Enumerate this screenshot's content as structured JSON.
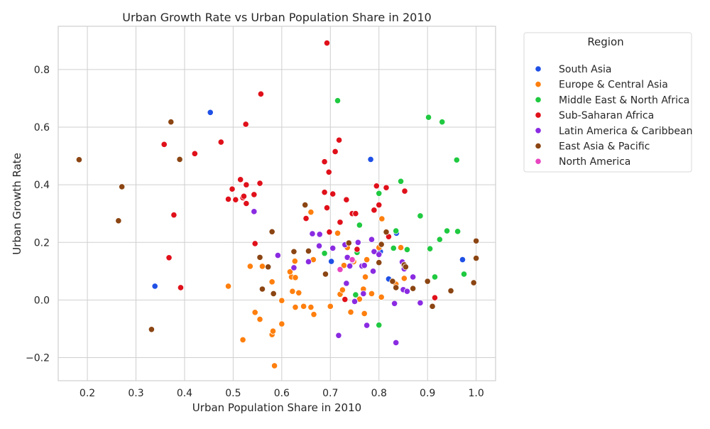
{
  "chart_data": {
    "type": "scatter",
    "title": "Urban Growth Rate vs Urban Population Share in 2010",
    "xlabel": "Urban Population Share in 2010",
    "ylabel": "Urban Growth Rate",
    "xlim": [
      0.14,
      1.04
    ],
    "ylim": [
      -0.28,
      0.95
    ],
    "xticks": [
      "0.2",
      "0.3",
      "0.4",
      "0.5",
      "0.6",
      "0.7",
      "0.8",
      "0.9",
      "1.0"
    ],
    "yticks": [
      "−0.2",
      "0.0",
      "0.2",
      "0.4",
      "0.6",
      "0.8"
    ],
    "grid": true,
    "legend": {
      "title": "Region",
      "placement": "outside-right"
    },
    "series": [
      {
        "name": "South Asia",
        "color": "#1f50e6",
        "points": [
          [
            0.453,
            0.651
          ],
          [
            0.339,
            0.048
          ],
          [
            0.783,
            0.488
          ],
          [
            0.836,
            0.232
          ],
          [
            0.803,
            0.168
          ],
          [
            0.702,
            0.134
          ],
          [
            0.82,
            0.073
          ],
          [
            0.972,
            0.14
          ]
        ]
      },
      {
        "name": "Europe & Central Asia",
        "color": "#ff7f0e",
        "points": [
          [
            0.49,
            0.048
          ],
          [
            0.535,
            0.117
          ],
          [
            0.545,
            -0.043
          ],
          [
            0.555,
            -0.067
          ],
          [
            0.52,
            -0.138
          ],
          [
            0.58,
            -0.12
          ],
          [
            0.585,
            -0.228
          ],
          [
            0.582,
            -0.108
          ],
          [
            0.6,
            -0.083
          ],
          [
            0.58,
            0.063
          ],
          [
            0.56,
            0.117
          ],
          [
            0.6,
            -0.002
          ],
          [
            0.62,
            0.08
          ],
          [
            0.617,
            0.098
          ],
          [
            0.622,
            0.03
          ],
          [
            0.628,
            0.078
          ],
          [
            0.627,
            0.135
          ],
          [
            0.635,
            0.025
          ],
          [
            0.628,
            -0.025
          ],
          [
            0.645,
            -0.022
          ],
          [
            0.66,
            -0.025
          ],
          [
            0.666,
            -0.05
          ],
          [
            0.66,
            0.305
          ],
          [
            0.665,
            0.14
          ],
          [
            0.7,
            -0.022
          ],
          [
            0.715,
            0.232
          ],
          [
            0.72,
            0.02
          ],
          [
            0.725,
            0.035
          ],
          [
            0.728,
            0.12
          ],
          [
            0.735,
            0.182
          ],
          [
            0.742,
            -0.042
          ],
          [
            0.748,
            0.133
          ],
          [
            0.76,
            0.003
          ],
          [
            0.768,
            0.038
          ],
          [
            0.77,
            -0.047
          ],
          [
            0.772,
            0.08
          ],
          [
            0.775,
            0.14
          ],
          [
            0.785,
            0.022
          ],
          [
            0.8,
            0.182
          ],
          [
            0.805,
            0.01
          ],
          [
            0.806,
            0.282
          ],
          [
            0.835,
            0.055
          ],
          [
            0.845,
            0.182
          ],
          [
            0.852,
            0.075
          ]
        ]
      },
      {
        "name": "Middle East & North Africa",
        "color": "#1fc940",
        "points": [
          [
            0.715,
            0.692
          ],
          [
            0.688,
            0.162
          ],
          [
            0.752,
            0.018
          ],
          [
            0.76,
            0.26
          ],
          [
            0.8,
            0.37
          ],
          [
            0.8,
            -0.087
          ],
          [
            0.83,
            0.18
          ],
          [
            0.835,
            0.24
          ],
          [
            0.845,
            0.412
          ],
          [
            0.858,
            0.175
          ],
          [
            0.885,
            0.292
          ],
          [
            0.902,
            0.634
          ],
          [
            0.905,
            0.178
          ],
          [
            0.915,
            0.08
          ],
          [
            0.925,
            0.21
          ],
          [
            0.93,
            0.618
          ],
          [
            0.94,
            0.24
          ],
          [
            0.96,
            0.486
          ],
          [
            0.962,
            0.238
          ],
          [
            0.975,
            0.09
          ],
          [
            0.755,
            0.165
          ]
        ]
      },
      {
        "name": "Sub-Saharan Africa",
        "color": "#e0101a",
        "points": [
          [
            0.693,
            0.892
          ],
          [
            0.557,
            0.715
          ],
          [
            0.526,
            0.61
          ],
          [
            0.358,
            0.54
          ],
          [
            0.475,
            0.548
          ],
          [
            0.421,
            0.508
          ],
          [
            0.378,
            0.295
          ],
          [
            0.368,
            0.147
          ],
          [
            0.392,
            0.043
          ],
          [
            0.49,
            0.35
          ],
          [
            0.498,
            0.385
          ],
          [
            0.505,
            0.348
          ],
          [
            0.515,
            0.418
          ],
          [
            0.52,
            0.355
          ],
          [
            0.522,
            0.36
          ],
          [
            0.527,
            0.4
          ],
          [
            0.527,
            0.335
          ],
          [
            0.543,
            0.366
          ],
          [
            0.545,
            0.196
          ],
          [
            0.555,
            0.405
          ],
          [
            0.65,
            0.283
          ],
          [
            0.688,
            0.48
          ],
          [
            0.688,
            0.374
          ],
          [
            0.693,
            0.32
          ],
          [
            0.697,
            0.444
          ],
          [
            0.698,
            0.236
          ],
          [
            0.705,
            0.368
          ],
          [
            0.71,
            0.515
          ],
          [
            0.718,
            0.555
          ],
          [
            0.72,
            0.27
          ],
          [
            0.73,
            0.002
          ],
          [
            0.733,
            0.348
          ],
          [
            0.745,
            0.3
          ],
          [
            0.752,
            0.3
          ],
          [
            0.755,
            0.176
          ],
          [
            0.79,
            0.312
          ],
          [
            0.795,
            0.396
          ],
          [
            0.8,
            0.33
          ],
          [
            0.815,
            0.39
          ],
          [
            0.82,
            0.22
          ],
          [
            0.853,
            0.378
          ],
          [
            0.915,
            0.008
          ]
        ]
      },
      {
        "name": "Latin America & Caribbean",
        "color": "#8a2be2",
        "points": [
          [
            0.543,
            0.307
          ],
          [
            0.592,
            0.155
          ],
          [
            0.625,
            0.112
          ],
          [
            0.655,
            0.133
          ],
          [
            0.663,
            0.23
          ],
          [
            0.677,
            0.188
          ],
          [
            0.678,
            0.228
          ],
          [
            0.705,
            0.18
          ],
          [
            0.717,
            -0.123
          ],
          [
            0.73,
            0.192
          ],
          [
            0.733,
            0.058
          ],
          [
            0.735,
            0.148
          ],
          [
            0.74,
            0.118
          ],
          [
            0.745,
            0.137
          ],
          [
            0.75,
            -0.005
          ],
          [
            0.757,
            0.2
          ],
          [
            0.765,
            0.118
          ],
          [
            0.768,
            0.022
          ],
          [
            0.77,
            0.12
          ],
          [
            0.775,
            -0.088
          ],
          [
            0.785,
            0.21
          ],
          [
            0.788,
            0.1
          ],
          [
            0.79,
            0.168
          ],
          [
            0.8,
            0.158
          ],
          [
            0.832,
            -0.012
          ],
          [
            0.835,
            -0.148
          ],
          [
            0.848,
            0.132
          ],
          [
            0.85,
            0.036
          ],
          [
            0.852,
            0.108
          ],
          [
            0.858,
            0.03
          ],
          [
            0.87,
            0.08
          ],
          [
            0.885,
            -0.01
          ]
        ]
      },
      {
        "name": "East Asia & Pacific",
        "color": "#8b4513",
        "points": [
          [
            0.183,
            0.487
          ],
          [
            0.264,
            0.275
          ],
          [
            0.271,
            0.393
          ],
          [
            0.332,
            -0.102
          ],
          [
            0.372,
            0.618
          ],
          [
            0.39,
            0.488
          ],
          [
            0.555,
            0.148
          ],
          [
            0.56,
            0.038
          ],
          [
            0.572,
            0.115
          ],
          [
            0.58,
            0.237
          ],
          [
            0.583,
            0.022
          ],
          [
            0.625,
            0.168
          ],
          [
            0.648,
            0.33
          ],
          [
            0.655,
            0.17
          ],
          [
            0.69,
            0.09
          ],
          [
            0.738,
            0.198
          ],
          [
            0.8,
            0.13
          ],
          [
            0.805,
            0.193
          ],
          [
            0.815,
            0.236
          ],
          [
            0.828,
            0.065
          ],
          [
            0.835,
            0.043
          ],
          [
            0.852,
            0.122
          ],
          [
            0.855,
            0.115
          ],
          [
            0.87,
            0.04
          ],
          [
            0.9,
            0.065
          ],
          [
            0.91,
            -0.022
          ],
          [
            0.948,
            0.032
          ],
          [
            0.995,
            0.06
          ],
          [
            1.0,
            0.205
          ],
          [
            1.0,
            0.145
          ]
        ]
      },
      {
        "name": "North America",
        "color": "#e845c0",
        "points": [
          [
            0.72,
            0.106
          ],
          [
            0.745,
            0.14
          ]
        ]
      }
    ]
  }
}
